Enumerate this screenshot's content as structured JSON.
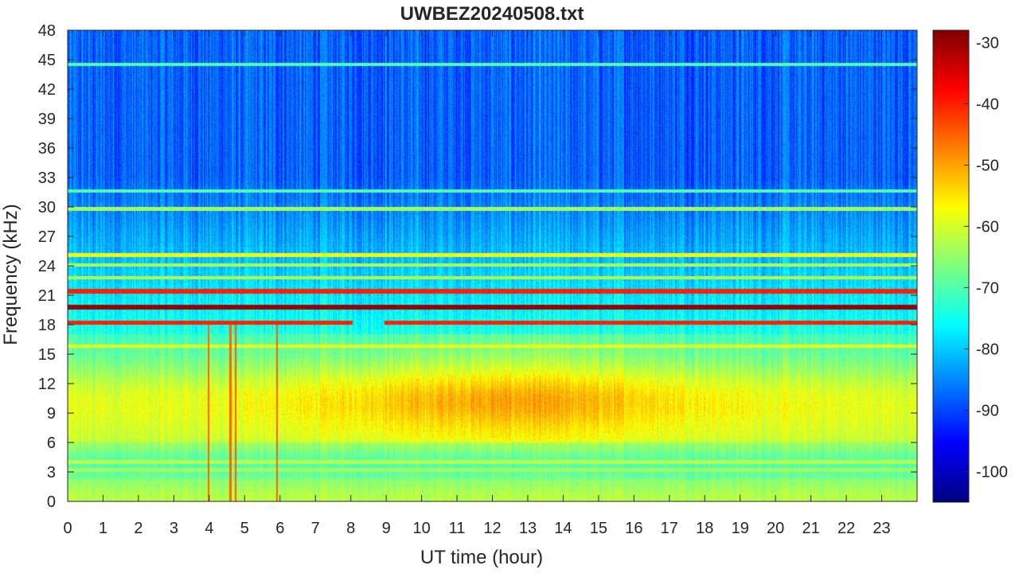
{
  "chart_data": {
    "type": "heatmap",
    "title": "UWBEZ20240508.txt",
    "xlabel": "UT time (hour)",
    "ylabel": "Frequency (kHz)",
    "xlim": [
      0,
      24
    ],
    "ylim": [
      0,
      48
    ],
    "x_ticks": [
      0,
      1,
      2,
      3,
      4,
      5,
      6,
      7,
      8,
      9,
      10,
      11,
      12,
      13,
      14,
      15,
      16,
      17,
      18,
      19,
      20,
      21,
      22,
      23
    ],
    "x_tick_labels": [
      "0",
      "1",
      "2",
      "3",
      "4",
      "5",
      "6",
      "7",
      "8",
      "9",
      "10",
      "11",
      "12",
      "13",
      "14",
      "15",
      "16",
      "17",
      "18",
      "19",
      "20",
      "21",
      "22",
      "23"
    ],
    "y_ticks": [
      0,
      3,
      6,
      9,
      12,
      15,
      18,
      21,
      24,
      27,
      30,
      33,
      36,
      39,
      42,
      45,
      48
    ],
    "y_tick_labels": [
      "0",
      "3",
      "6",
      "9",
      "12",
      "15",
      "18",
      "21",
      "24",
      "27",
      "30",
      "33",
      "36",
      "39",
      "42",
      "45",
      "48"
    ],
    "colormap": "jet",
    "colorbar": {
      "clim": [
        -105,
        -28
      ],
      "ticks": [
        -30,
        -40,
        -50,
        -60,
        -70,
        -80,
        -90,
        -100
      ],
      "tick_labels": [
        "-30",
        "-40",
        "-50",
        "-60",
        "-70",
        "-80",
        "-90",
        "-100"
      ],
      "placement": "right"
    },
    "grid": false,
    "features": {
      "strong_lines": [
        {
          "freq": 19.8,
          "level": -30,
          "t_start": 0,
          "t_end": 24
        },
        {
          "freq": 21.4,
          "level": -40,
          "t_start": 0,
          "t_end": 24
        },
        {
          "freq": 18.2,
          "level": -40,
          "t_start": 0,
          "t_end": 8.05
        },
        {
          "freq": 18.2,
          "level": -40,
          "t_start": 8.95,
          "t_end": 24
        }
      ],
      "weak_lines": [
        {
          "freq": 25.1,
          "level": -58
        },
        {
          "freq": 24.1,
          "level": -62
        },
        {
          "freq": 22.8,
          "level": -62
        },
        {
          "freq": 31.6,
          "level": -70
        },
        {
          "freq": 29.8,
          "level": -64
        },
        {
          "freq": 15.8,
          "level": -58
        },
        {
          "freq": 4.0,
          "level": -62
        },
        {
          "freq": 3.2,
          "level": -64
        },
        {
          "freq": 2.0,
          "level": -66
        },
        {
          "freq": 1.3,
          "level": -68
        },
        {
          "freq": 44.5,
          "level": -70
        }
      ],
      "broadband_peak": {
        "freq_center": 10.5,
        "hour_center": 12.5,
        "level": -50
      },
      "background": {
        "low_freq_level": -62,
        "high_freq_level": -88
      },
      "vertical_spikes_hours": [
        3.98,
        5.92,
        4.6,
        4.75
      ]
    }
  }
}
